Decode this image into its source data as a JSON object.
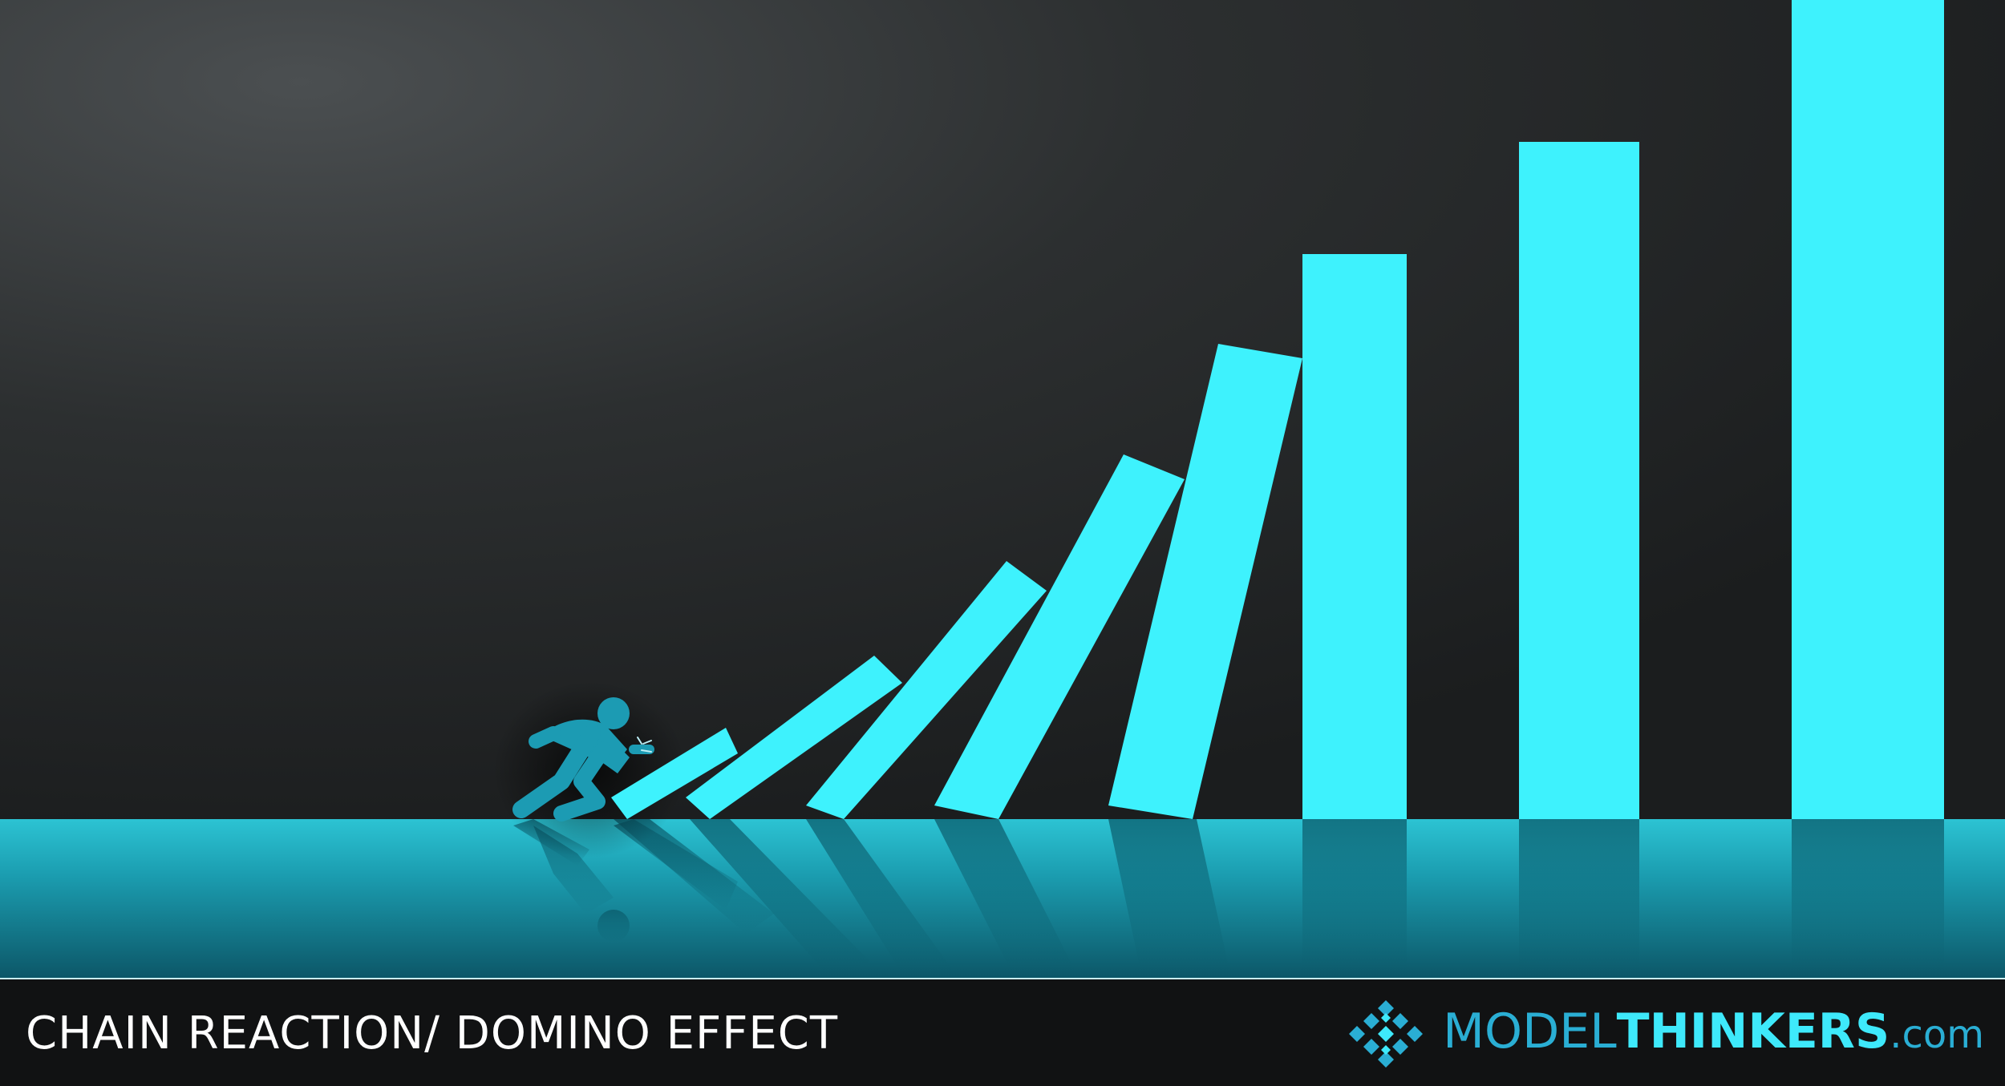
{
  "caption": {
    "text": "CHAIN REACTION/ DOMINO EFFECT"
  },
  "brand": {
    "part_1": "MODEL",
    "part_2": "THINKERS",
    "part_3": ".com",
    "mark_icon": "diamond-grid-logo-icon"
  },
  "scene": {
    "icons": [
      "pushing-person-icon",
      "domino-icon"
    ],
    "colors": {
      "domino": "#3ef2fd",
      "figure": "#1c9bb3",
      "floor": "#179aad",
      "backdrop": "#2a2d2e"
    }
  }
}
